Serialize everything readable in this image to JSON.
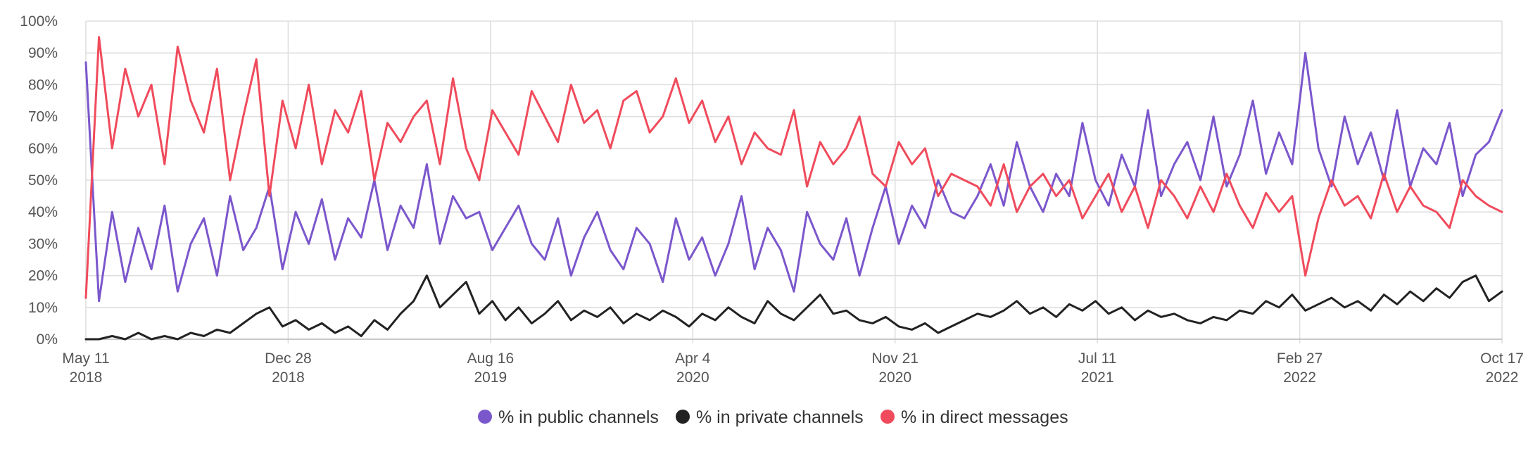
{
  "chart_data": {
    "type": "line",
    "title": "",
    "xlabel": "",
    "ylabel": "",
    "ylim": [
      0,
      100
    ],
    "y_ticks": [
      "0%",
      "10%",
      "20%",
      "30%",
      "40%",
      "50%",
      "60%",
      "70%",
      "80%",
      "90%",
      "100%"
    ],
    "x_ticks": [
      {
        "date": "May 11",
        "year": "2018"
      },
      {
        "date": "Dec 28",
        "year": "2018"
      },
      {
        "date": "Aug 16",
        "year": "2019"
      },
      {
        "date": "Apr 4",
        "year": "2020"
      },
      {
        "date": "Nov 21",
        "year": "2020"
      },
      {
        "date": "Jul 11",
        "year": "2021"
      },
      {
        "date": "Feb 27",
        "year": "2022"
      },
      {
        "date": "Oct 17",
        "year": "2022"
      }
    ],
    "x_range_days": [
      0,
      1620
    ],
    "grid": true,
    "legend_position": "bottom-center",
    "series": [
      {
        "name": "% in public channels",
        "color": "#7b57cc",
        "x": [
          0,
          15,
          30,
          45,
          60,
          75,
          90,
          105,
          120,
          135,
          150,
          165,
          180,
          195,
          210,
          225,
          240,
          255,
          270,
          285,
          300,
          315,
          330,
          345,
          360,
          375,
          390,
          405,
          420,
          435,
          450,
          465,
          480,
          495,
          510,
          525,
          540,
          555,
          570,
          585,
          600,
          615,
          630,
          645,
          660,
          675,
          690,
          705,
          720,
          735,
          750,
          765,
          780,
          795,
          810,
          825,
          840,
          855,
          870,
          885,
          900,
          915,
          930,
          945,
          960,
          975,
          990,
          1005,
          1020,
          1035,
          1050,
          1065,
          1080,
          1095,
          1110,
          1125,
          1140,
          1155,
          1170,
          1185,
          1200,
          1215,
          1230,
          1245,
          1260,
          1275,
          1290,
          1305,
          1320,
          1335,
          1350,
          1365,
          1380,
          1395,
          1410,
          1425,
          1440,
          1455,
          1470,
          1485,
          1500,
          1515,
          1530,
          1545,
          1560,
          1575,
          1590,
          1605,
          1620
        ],
        "values": [
          87,
          12,
          40,
          18,
          35,
          22,
          42,
          15,
          30,
          38,
          20,
          45,
          28,
          35,
          48,
          22,
          40,
          30,
          44,
          25,
          38,
          32,
          50,
          28,
          42,
          35,
          55,
          30,
          45,
          38,
          40,
          28,
          35,
          42,
          30,
          25,
          38,
          20,
          32,
          40,
          28,
          22,
          35,
          30,
          18,
          38,
          25,
          32,
          20,
          30,
          45,
          22,
          35,
          28,
          15,
          40,
          30,
          25,
          38,
          20,
          35,
          48,
          30,
          42,
          35,
          50,
          40,
          38,
          45,
          55,
          42,
          62,
          48,
          40,
          52,
          45,
          68,
          50,
          42,
          58,
          48,
          72,
          45,
          55,
          62,
          50,
          70,
          48,
          58,
          75,
          52,
          65,
          55,
          90,
          60,
          48,
          70,
          55,
          65,
          50,
          72,
          48,
          60,
          55,
          68,
          45,
          58,
          62,
          72
        ]
      },
      {
        "name": "% in private channels",
        "color": "#222222",
        "x": [
          0,
          15,
          30,
          45,
          60,
          75,
          90,
          105,
          120,
          135,
          150,
          165,
          180,
          195,
          210,
          225,
          240,
          255,
          270,
          285,
          300,
          315,
          330,
          345,
          360,
          375,
          390,
          405,
          420,
          435,
          450,
          465,
          480,
          495,
          510,
          525,
          540,
          555,
          570,
          585,
          600,
          615,
          630,
          645,
          660,
          675,
          690,
          705,
          720,
          735,
          750,
          765,
          780,
          795,
          810,
          825,
          840,
          855,
          870,
          885,
          900,
          915,
          930,
          945,
          960,
          975,
          990,
          1005,
          1020,
          1035,
          1050,
          1065,
          1080,
          1095,
          1110,
          1125,
          1140,
          1155,
          1170,
          1185,
          1200,
          1215,
          1230,
          1245,
          1260,
          1275,
          1290,
          1305,
          1320,
          1335,
          1350,
          1365,
          1380,
          1395,
          1410,
          1425,
          1440,
          1455,
          1470,
          1485,
          1500,
          1515,
          1530,
          1545,
          1560,
          1575,
          1590,
          1605,
          1620
        ],
        "values": [
          0,
          0,
          1,
          0,
          2,
          0,
          1,
          0,
          2,
          1,
          3,
          2,
          5,
          8,
          10,
          4,
          6,
          3,
          5,
          2,
          4,
          1,
          6,
          3,
          8,
          12,
          20,
          10,
          14,
          18,
          8,
          12,
          6,
          10,
          5,
          8,
          12,
          6,
          9,
          7,
          10,
          5,
          8,
          6,
          9,
          7,
          4,
          8,
          6,
          10,
          7,
          5,
          12,
          8,
          6,
          10,
          14,
          8,
          9,
          6,
          5,
          7,
          4,
          3,
          5,
          2,
          4,
          6,
          8,
          7,
          9,
          12,
          8,
          10,
          7,
          11,
          9,
          12,
          8,
          10,
          6,
          9,
          7,
          8,
          6,
          5,
          7,
          6,
          9,
          8,
          12,
          10,
          14,
          9,
          11,
          13,
          10,
          12,
          9,
          14,
          11,
          15,
          12,
          16,
          13,
          18,
          20,
          12,
          15
        ]
      },
      {
        "name": "% in direct messages",
        "color": "#f04b5c",
        "x": [
          0,
          15,
          30,
          45,
          60,
          75,
          90,
          105,
          120,
          135,
          150,
          165,
          180,
          195,
          210,
          225,
          240,
          255,
          270,
          285,
          300,
          315,
          330,
          345,
          360,
          375,
          390,
          405,
          420,
          435,
          450,
          465,
          480,
          495,
          510,
          525,
          540,
          555,
          570,
          585,
          600,
          615,
          630,
          645,
          660,
          675,
          690,
          705,
          720,
          735,
          750,
          765,
          780,
          795,
          810,
          825,
          840,
          855,
          870,
          885,
          900,
          915,
          930,
          945,
          960,
          975,
          990,
          1005,
          1020,
          1035,
          1050,
          1065,
          1080,
          1095,
          1110,
          1125,
          1140,
          1155,
          1170,
          1185,
          1200,
          1215,
          1230,
          1245,
          1260,
          1275,
          1290,
          1305,
          1320,
          1335,
          1350,
          1365,
          1380,
          1395,
          1410,
          1425,
          1440,
          1455,
          1470,
          1485,
          1500,
          1515,
          1530,
          1545,
          1560,
          1575,
          1590,
          1605,
          1620
        ],
        "values": [
          13,
          95,
          60,
          85,
          70,
          80,
          55,
          92,
          75,
          65,
          85,
          50,
          70,
          88,
          45,
          75,
          60,
          80,
          55,
          72,
          65,
          78,
          50,
          68,
          62,
          70,
          75,
          55,
          82,
          60,
          50,
          72,
          65,
          58,
          78,
          70,
          62,
          80,
          68,
          72,
          60,
          75,
          78,
          65,
          70,
          82,
          68,
          75,
          62,
          70,
          55,
          65,
          60,
          58,
          72,
          48,
          62,
          55,
          60,
          70,
          52,
          48,
          62,
          55,
          60,
          45,
          52,
          50,
          48,
          42,
          55,
          40,
          48,
          52,
          45,
          50,
          38,
          45,
          52,
          40,
          48,
          35,
          50,
          45,
          38,
          48,
          40,
          52,
          42,
          35,
          46,
          40,
          45,
          20,
          38,
          50,
          42,
          45,
          38,
          52,
          40,
          48,
          42,
          40,
          35,
          50,
          45,
          42,
          40
        ]
      }
    ]
  }
}
